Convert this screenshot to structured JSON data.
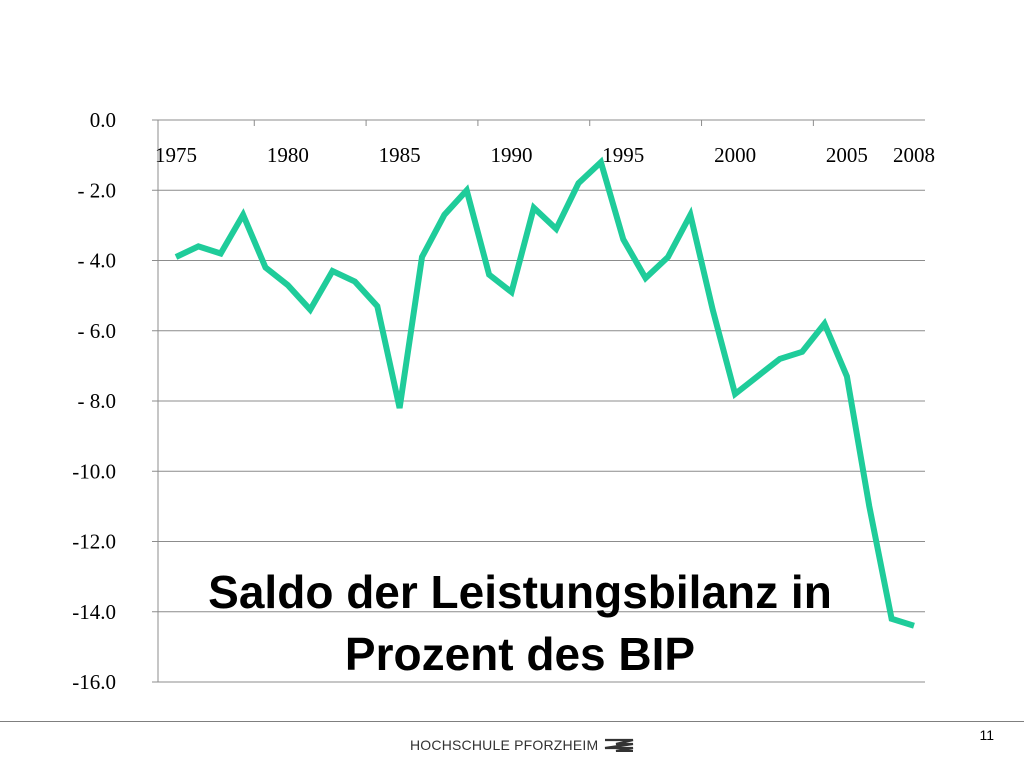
{
  "chart_data": {
    "type": "line",
    "title": "Saldo der Leistungsbilanz in Prozent des BIP",
    "title_lines": [
      "Saldo der Leistungsbilanz in",
      "Prozent des BIP"
    ],
    "y_tick_labels": [
      "0.0",
      "- 2.0",
      "- 4.0",
      "- 6.0",
      "- 8.0",
      "-10.0",
      "-12.0",
      "-14.0",
      "-16.0"
    ],
    "y_tick_values": [
      0,
      -2,
      -4,
      -6,
      -8,
      -10,
      -12,
      -14,
      -16
    ],
    "ylim": [
      -16,
      0
    ],
    "x_tick_labels": [
      "1975",
      "1980",
      "1985",
      "1990",
      "1995",
      "2000",
      "2005",
      "2008"
    ],
    "x_tick_values": [
      1975,
      1980,
      1985,
      1990,
      1995,
      2000,
      2005,
      2008
    ],
    "xlim": [
      1975,
      2008
    ],
    "grid": true,
    "line_color": "#1fcc9a",
    "series": [
      {
        "x": [
          1975,
          1976,
          1977,
          1978,
          1979,
          1980,
          1981,
          1982,
          1983,
          1984,
          1985,
          1986,
          1987,
          1988,
          1989,
          1990,
          1991,
          1992,
          1993,
          1994,
          1995,
          1996,
          1997,
          1998,
          1999,
          2000,
          2001,
          2002,
          2003,
          2004,
          2005,
          2006,
          2007,
          2008
        ],
        "values": [
          -3.9,
          -3.6,
          -3.8,
          -2.7,
          -4.2,
          -4.7,
          -5.4,
          -4.3,
          -4.6,
          -5.3,
          -8.2,
          -3.9,
          -2.7,
          -2.0,
          -4.4,
          -4.9,
          -2.5,
          -3.1,
          -1.8,
          -1.2,
          -3.4,
          -4.5,
          -3.9,
          -2.7,
          -5.4,
          -7.8,
          -7.3,
          -6.8,
          -6.6,
          -5.8,
          -7.3,
          -11.0,
          -14.2,
          -14.4
        ]
      }
    ]
  },
  "footer": {
    "page_number": "11",
    "brand": "HOCHSCHULE PFORZHEIM",
    "rule_color": "#7f7f7f"
  }
}
